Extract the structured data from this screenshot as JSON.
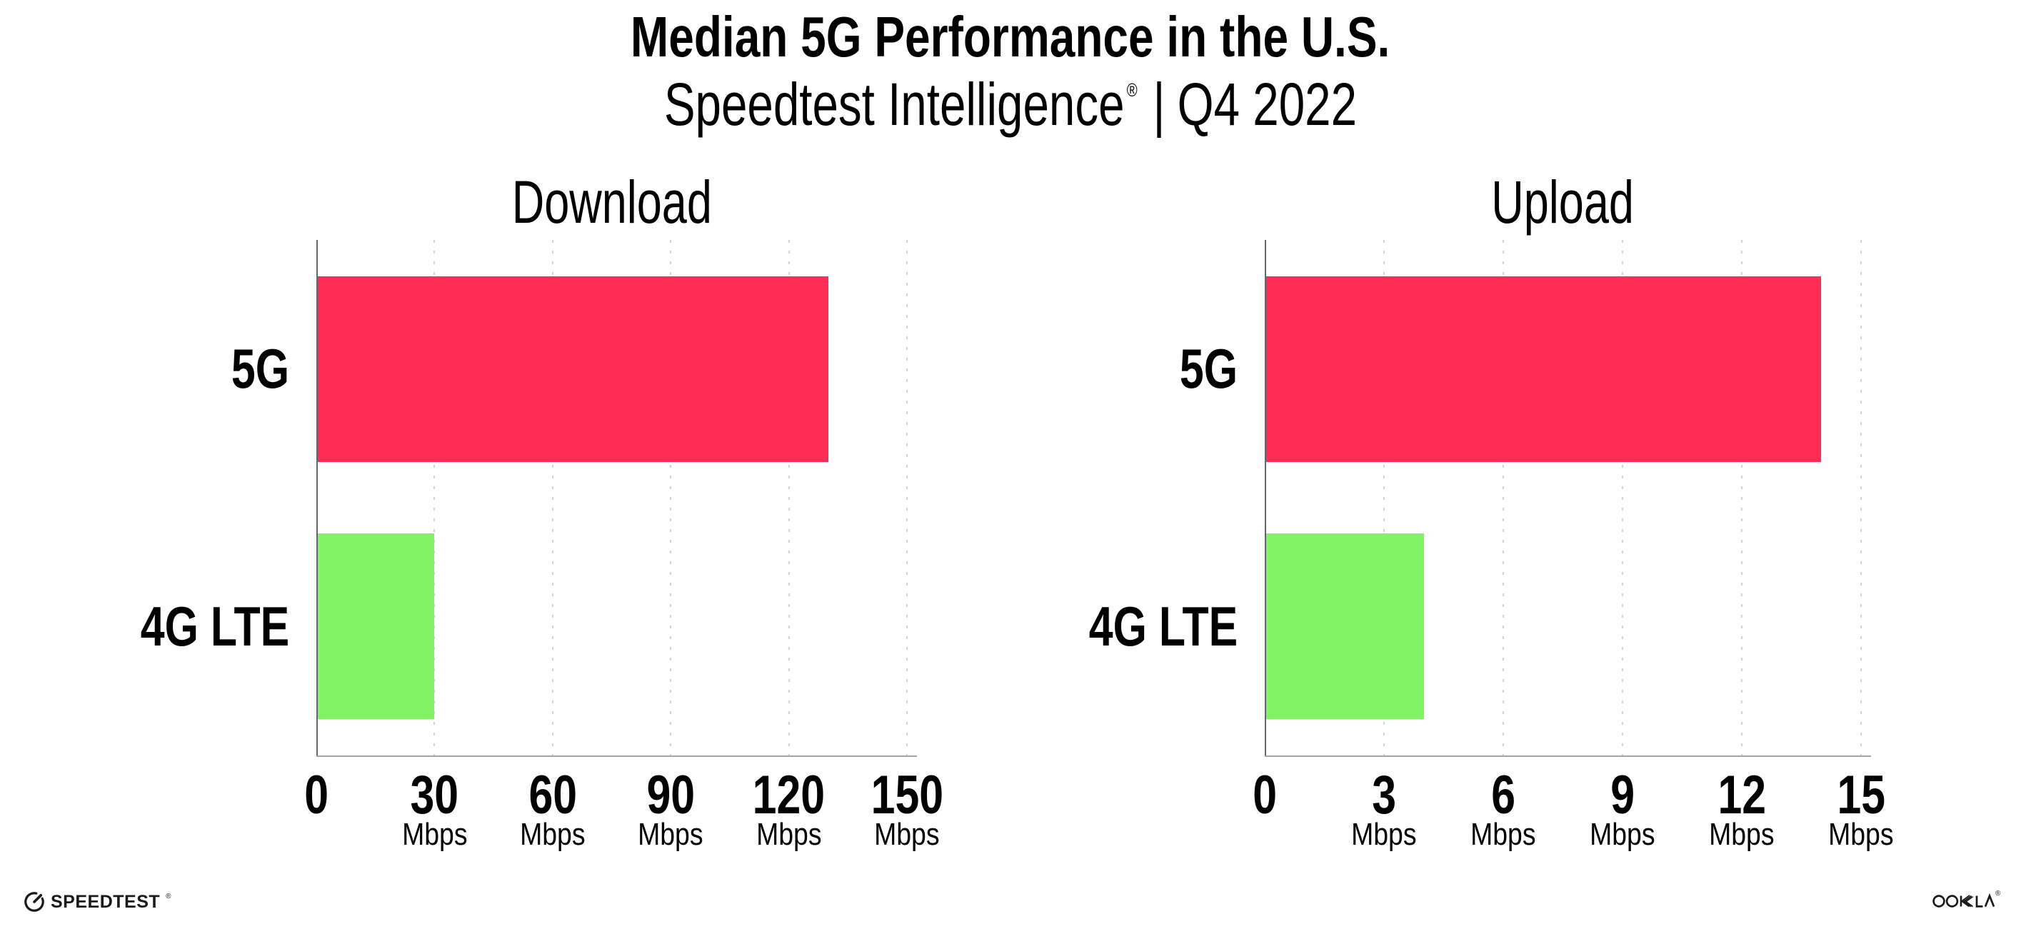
{
  "header": {
    "title": "Median 5G Performance in the U.S.",
    "subtitle_brand": "Speedtest Intelligence",
    "subtitle_reg": "®",
    "subtitle_sep": "|",
    "subtitle_period": "Q4 2022"
  },
  "footer": {
    "speedtest_wordmark": "SPEEDTEST",
    "speedtest_mark": "®",
    "ookla_wordmark": "OOKLA",
    "ookla_mark": "®"
  },
  "colors": {
    "bar_5g": "#FF2D55",
    "bar_4g_lte": "#80F464",
    "gridline": "#ccd3e0",
    "y_axis": "#63666c",
    "x_axis": "#a2a5aa",
    "text": "#000000",
    "background": "#FFFFFF"
  },
  "chart_data": {
    "type": "bar",
    "orientation": "horizontal",
    "title": "Median 5G Performance in the U.S.",
    "subtitle": "Speedtest Intelligence® | Q4 2022",
    "legend": "none",
    "grid": "dotted-vertical",
    "unit": "Mbps",
    "bar_colors": {
      "5G": "#FF2D55",
      "4G LTE": "#80F464"
    },
    "charts": [
      {
        "title": "Download",
        "categories": [
          "5G",
          "4G LTE"
        ],
        "values": [
          130,
          30
        ],
        "unit": "Mbps",
        "xlim": [
          0,
          150
        ],
        "xticks": [
          0,
          30,
          60,
          90,
          120,
          150
        ]
      },
      {
        "title": "Upload",
        "categories": [
          "5G",
          "4G LTE"
        ],
        "values": [
          14,
          4
        ],
        "unit": "Mbps",
        "xlim": [
          0,
          15
        ],
        "xticks": [
          0,
          3,
          6,
          9,
          12,
          15
        ]
      }
    ]
  }
}
